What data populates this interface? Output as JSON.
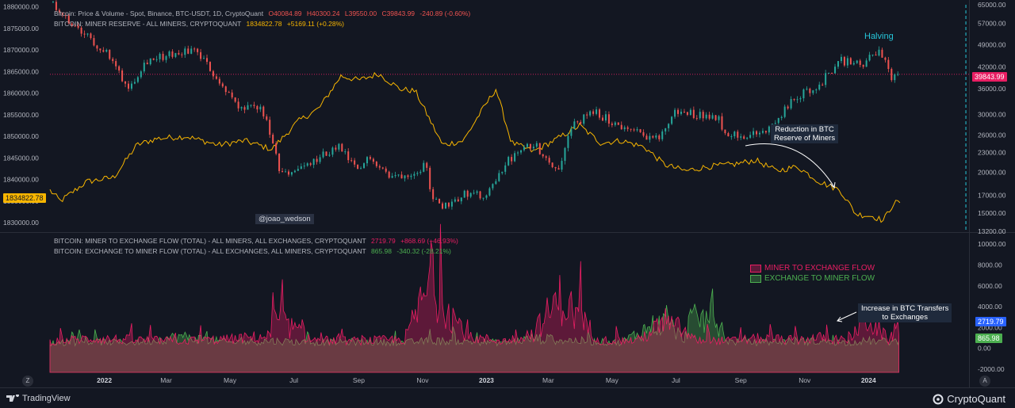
{
  "header": {
    "price": {
      "title": "Bitcoin: Price & Volume - Spot, Binance, BTC-USDT, 1D, CryptoQuant",
      "o": "O40084.89",
      "h": "H40300.24",
      "l": "L39550.00",
      "c": "C39843.99",
      "chg": "-240.89 (-0.60%)"
    },
    "reserve": {
      "title": "BITCOIN: MINER RESERVE - ALL MINERS, CRYPTOQUANT",
      "value": "1834822.78",
      "chg": "+5169.11 (+0.28%)"
    },
    "flow1": {
      "title": "BITCOIN: MINER TO EXCHANGE FLOW (TOTAL) - ALL MINERS, ALL EXCHANGES, CRYPTOQUANT",
      "value": "2719.79",
      "chg": "+868.69 (+46.93%)"
    },
    "flow2": {
      "title": "BITCOIN: EXCHANGE TO MINER FLOW (TOTAL) - ALL EXCHANGES, ALL MINERS, CRYPTOQUANT",
      "value": "865.98",
      "chg": "-340.32 (-28.21%)"
    }
  },
  "annotations": {
    "halving": "Halving",
    "reduction_line1": "Reduction in BTC",
    "reduction_line2": "Reserve of Miners",
    "increase_line1": "Increase in BTC Transfers",
    "increase_line2": "to Exchanges",
    "watermark": "@joao_wedson"
  },
  "badges": {
    "price_last": "39843.99",
    "reserve_last": "1834822.78",
    "flow1_last": "2719.79",
    "flow2_last": "865.98"
  },
  "footer": {
    "tradingview": "TradingView",
    "cryptoquant": "CryptoQuant",
    "z_button": "Z",
    "a_button": "A"
  },
  "colors": {
    "background": "#131722",
    "price_up": "#26a69a",
    "price_down": "#ef5350",
    "reserve": "#f7b500",
    "miner_to_exchange": "#e91e63",
    "exchange_to_miner": "#4caf50",
    "halving_line": "#26c6da"
  },
  "chart_data": [
    {
      "type": "line",
      "name": "top-panel",
      "x_ticks": [
        "2022",
        "Mar",
        "May",
        "Jul",
        "Sep",
        "Nov",
        "2023",
        "Mar",
        "May",
        "Jul",
        "Sep",
        "Nov",
        "2024"
      ],
      "left_axis_ticks": [
        1880000,
        1875000,
        1870000,
        1865000,
        1860000,
        1855000,
        1850000,
        1845000,
        1840000,
        1835000,
        1830000
      ],
      "right_axis_ticks": [
        65000,
        57000,
        49000,
        42000,
        36000,
        30000,
        26000,
        23000,
        20000,
        17000,
        15000,
        13200
      ],
      "ylim_left": [
        1828000,
        1880500
      ],
      "ylim_right": [
        13200,
        65000
      ],
      "right_axis_scale": "log",
      "series": [
        {
          "name": "Bitcoin: Price & Volume - Spot, Binance, BTC-USDT, 1D, CryptoQuant",
          "axis": "right",
          "x": [
            "2021-11-10",
            "2021-12-01",
            "2022-01-01",
            "2022-01-24",
            "2022-02-10",
            "2022-03-28",
            "2022-04-15",
            "2022-05-10",
            "2022-05-31",
            "2022-06-18",
            "2022-07-15",
            "2022-08-12",
            "2022-08-31",
            "2022-09-12",
            "2022-10-01",
            "2022-10-25",
            "2022-11-06",
            "2022-11-09",
            "2022-11-21",
            "2022-12-15",
            "2023-01-01",
            "2023-01-20",
            "2023-02-15",
            "2023-03-10",
            "2023-03-25",
            "2023-04-14",
            "2023-05-15",
            "2023-06-15",
            "2023-06-30",
            "2023-07-15",
            "2023-08-10",
            "2023-08-17",
            "2023-09-11",
            "2023-10-01",
            "2023-10-24",
            "2023-11-15",
            "2023-12-05",
            "2023-12-25",
            "2024-01-11",
            "2024-01-23",
            "2024-01-31"
          ],
          "values": [
            66000,
            56000,
            47000,
            36000,
            44000,
            47500,
            40000,
            31000,
            31500,
            19500,
            21000,
            24000,
            20000,
            22500,
            19300,
            20200,
            21300,
            16500,
            15800,
            17400,
            16600,
            21500,
            24500,
            20200,
            28000,
            30500,
            27000,
            25200,
            30500,
            30300,
            29500,
            26500,
            25800,
            27500,
            34000,
            37000,
            44000,
            42500,
            47000,
            39000,
            39843.99
          ]
        },
        {
          "name": "BITCOIN: MINER RESERVE - ALL MINERS, CRYPTOQUANT",
          "axis": "left",
          "x": [
            "2021-11-10",
            "2021-11-20",
            "2021-12-15",
            "2022-01-10",
            "2022-02-01",
            "2022-02-20",
            "2022-03-20",
            "2022-04-20",
            "2022-05-15",
            "2022-06-10",
            "2022-07-05",
            "2022-07-25",
            "2022-08-15",
            "2022-09-01",
            "2022-09-20",
            "2022-10-10",
            "2022-10-25",
            "2022-11-20",
            "2022-12-10",
            "2022-12-25",
            "2023-01-10",
            "2023-01-25",
            "2023-02-15",
            "2023-03-10",
            "2023-03-31",
            "2023-04-20",
            "2023-05-10",
            "2023-06-01",
            "2023-06-20",
            "2023-07-10",
            "2023-08-01",
            "2023-08-25",
            "2023-09-15",
            "2023-10-05",
            "2023-10-25",
            "2023-11-15",
            "2023-12-05",
            "2023-12-20",
            "2024-01-05",
            "2024-01-15",
            "2024-01-25",
            "2024-01-31"
          ],
          "values": [
            1837500,
            1835000,
            1839500,
            1840500,
            1848000,
            1849500,
            1850000,
            1848000,
            1849000,
            1847000,
            1853500,
            1856500,
            1864000,
            1863000,
            1864500,
            1861000,
            1860500,
            1848000,
            1849000,
            1855000,
            1861000,
            1848500,
            1846500,
            1849500,
            1852500,
            1848500,
            1849000,
            1847500,
            1843500,
            1842000,
            1843000,
            1843500,
            1844500,
            1842000,
            1843000,
            1839500,
            1837500,
            1832000,
            1831500,
            1830500,
            1834500,
            1834822.78
          ]
        }
      ]
    },
    {
      "type": "area",
      "name": "bottom-panel",
      "x_ticks": [
        "2022",
        "Mar",
        "May",
        "Jul",
        "Sep",
        "Nov",
        "2023",
        "Mar",
        "May",
        "Jul",
        "Sep",
        "Nov",
        "2024"
      ],
      "right_axis_ticks": [
        10000,
        8000,
        6000,
        4000,
        2000,
        0,
        -2000
      ],
      "ylim": [
        -2300,
        11000
      ],
      "legend": [
        "MINER TO EXCHANGE FLOW",
        "EXCHANGE TO MINER FLOW"
      ],
      "legend_placement": "top-right",
      "series": [
        {
          "name": "MINER TO EXCHANGE FLOW",
          "x": [
            "2021-11-10",
            "2021-12-20",
            "2022-02-01",
            "2022-03-15",
            "2022-05-01",
            "2022-06-10",
            "2022-06-13",
            "2022-07-20",
            "2022-09-01",
            "2022-10-15",
            "2022-11-09",
            "2022-12-15",
            "2023-01-20",
            "2023-02-15",
            "2023-03-13",
            "2023-04-20",
            "2023-05-10",
            "2023-05-26",
            "2023-06-15",
            "2023-06-25",
            "2023-07-05",
            "2023-07-20",
            "2023-08-20",
            "2023-09-20",
            "2023-10-20",
            "2023-11-20",
            "2023-12-10",
            "2024-01-01",
            "2024-01-20",
            "2024-01-31"
          ],
          "values": [
            800,
            1200,
            1000,
            900,
            1100,
            1500,
            3600,
            1000,
            900,
            1100,
            7800,
            1300,
            900,
            1800,
            6000,
            1000,
            900,
            1000,
            2600,
            2800,
            2400,
            1000,
            900,
            1200,
            1000,
            1300,
            900,
            3500,
            1000,
            2719.79
          ]
        },
        {
          "name": "EXCHANGE TO MINER FLOW",
          "x": [
            "2021-11-10",
            "2021-12-20",
            "2022-02-01",
            "2022-03-15",
            "2022-05-01",
            "2022-06-10",
            "2022-07-20",
            "2022-09-01",
            "2022-10-15",
            "2022-11-09",
            "2022-12-15",
            "2023-01-20",
            "2023-02-15",
            "2023-03-13",
            "2023-04-20",
            "2023-05-10",
            "2023-06-10",
            "2023-06-25",
            "2023-07-08",
            "2023-07-15",
            "2023-07-28",
            "2023-08-10",
            "2023-08-20",
            "2023-09-20",
            "2023-10-20",
            "2023-11-20",
            "2023-12-10",
            "2024-01-01",
            "2024-01-20",
            "2024-01-31"
          ],
          "values": [
            600,
            800,
            700,
            1400,
            700,
            900,
            700,
            800,
            700,
            900,
            800,
            700,
            1200,
            1000,
            800,
            700,
            2800,
            3000,
            1000,
            3400,
            3500,
            3400,
            800,
            700,
            900,
            800,
            700,
            900,
            800,
            865.98
          ]
        }
      ]
    }
  ]
}
